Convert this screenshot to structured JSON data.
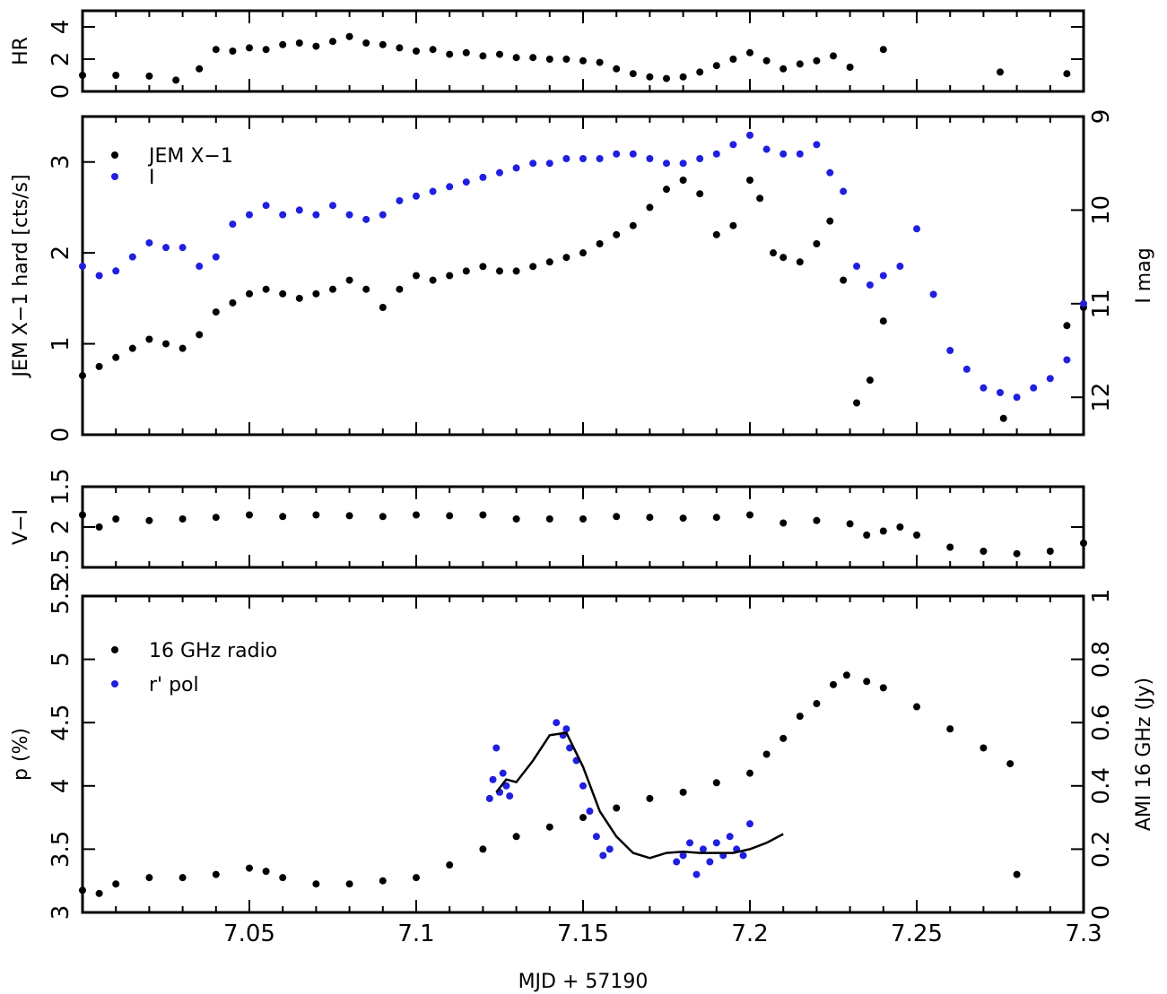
{
  "chart_data": [
    {
      "panel": "hr",
      "type": "scatter",
      "title": "",
      "xlabel": "",
      "ylabel": "HR",
      "xlim": [
        7.0,
        7.3
      ],
      "ylim": [
        0,
        5
      ],
      "yticks": [
        "0",
        "2",
        "4"
      ],
      "yticks_values": [
        0,
        2,
        4
      ],
      "xticks_values": [
        7.05,
        7.1,
        7.15,
        7.2,
        7.25,
        7.3
      ],
      "series": [
        {
          "color": "#000000",
          "x": [
            7.0,
            7.01,
            7.02,
            7.028,
            7.035,
            7.04,
            7.045,
            7.05,
            7.055,
            7.06,
            7.065,
            7.07,
            7.075,
            7.08,
            7.085,
            7.09,
            7.095,
            7.1,
            7.105,
            7.11,
            7.115,
            7.12,
            7.125,
            7.13,
            7.135,
            7.14,
            7.145,
            7.15,
            7.155,
            7.16,
            7.165,
            7.17,
            7.175,
            7.18,
            7.185,
            7.19,
            7.195,
            7.2,
            7.205,
            7.21,
            7.215,
            7.22,
            7.225,
            7.23,
            7.24,
            7.275,
            7.295
          ],
          "y": [
            1.0,
            1.0,
            0.95,
            0.7,
            1.4,
            2.6,
            2.5,
            2.7,
            2.6,
            2.9,
            3.0,
            2.8,
            3.1,
            3.4,
            3.0,
            2.9,
            2.7,
            2.5,
            2.6,
            2.3,
            2.4,
            2.2,
            2.3,
            2.1,
            2.1,
            2.0,
            2.0,
            1.9,
            1.8,
            1.4,
            1.1,
            0.9,
            0.8,
            0.9,
            1.2,
            1.6,
            2.0,
            2.4,
            1.9,
            1.4,
            1.7,
            1.9,
            2.2,
            1.5,
            2.6,
            1.2,
            1.1
          ]
        }
      ]
    },
    {
      "panel": "xray_optical",
      "type": "scatter",
      "title": "",
      "xlabel": "",
      "ylabel": "JEM X−1 hard [cts/s]",
      "y2label": "I mag",
      "xlim": [
        7.0,
        7.3
      ],
      "ylim": [
        0,
        3.5
      ],
      "y2lim": [
        9,
        12.4
      ],
      "yticks": [
        "0",
        "1",
        "2",
        "3"
      ],
      "yticks_values": [
        0,
        1,
        2,
        3
      ],
      "y2ticks": [
        "9",
        "10",
        "11",
        "12"
      ],
      "y2ticks_values": [
        9,
        10,
        11,
        12
      ],
      "xticks_values": [
        7.05,
        7.1,
        7.15,
        7.2,
        7.25,
        7.3
      ],
      "legend_position": "top-left",
      "series": [
        {
          "name": "JEM X−1",
          "color": "#000000",
          "axis": "left",
          "x": [
            7.0,
            7.005,
            7.01,
            7.015,
            7.02,
            7.025,
            7.03,
            7.035,
            7.04,
            7.045,
            7.05,
            7.055,
            7.06,
            7.065,
            7.07,
            7.075,
            7.08,
            7.085,
            7.09,
            7.095,
            7.1,
            7.105,
            7.11,
            7.115,
            7.12,
            7.125,
            7.13,
            7.135,
            7.14,
            7.145,
            7.15,
            7.155,
            7.16,
            7.165,
            7.17,
            7.175,
            7.18,
            7.185,
            7.19,
            7.195,
            7.2,
            7.203,
            7.207,
            7.21,
            7.215,
            7.22,
            7.224,
            7.228,
            7.232,
            7.236,
            7.24,
            7.276,
            7.295,
            7.3
          ],
          "y": [
            0.65,
            0.75,
            0.85,
            0.95,
            1.05,
            1.0,
            0.95,
            1.1,
            1.35,
            1.45,
            1.55,
            1.6,
            1.55,
            1.5,
            1.55,
            1.6,
            1.7,
            1.6,
            1.4,
            1.6,
            1.75,
            1.7,
            1.75,
            1.8,
            1.85,
            1.8,
            1.8,
            1.85,
            1.9,
            1.95,
            2.0,
            2.1,
            2.2,
            2.3,
            2.5,
            2.7,
            2.8,
            2.65,
            2.2,
            2.3,
            2.8,
            2.6,
            2.0,
            1.95,
            1.9,
            2.1,
            2.35,
            1.7,
            0.35,
            0.6,
            1.25,
            0.18,
            1.2,
            1.4
          ]
        },
        {
          "name": "I",
          "color": "#1f1fdf",
          "axis": "right",
          "x": [
            7.0,
            7.005,
            7.01,
            7.015,
            7.02,
            7.025,
            7.03,
            7.035,
            7.04,
            7.045,
            7.05,
            7.055,
            7.06,
            7.065,
            7.07,
            7.075,
            7.08,
            7.085,
            7.09,
            7.095,
            7.1,
            7.105,
            7.11,
            7.115,
            7.12,
            7.125,
            7.13,
            7.135,
            7.14,
            7.145,
            7.15,
            7.155,
            7.16,
            7.165,
            7.17,
            7.175,
            7.18,
            7.185,
            7.19,
            7.195,
            7.2,
            7.205,
            7.21,
            7.215,
            7.22,
            7.224,
            7.228,
            7.232,
            7.236,
            7.24,
            7.245,
            7.25,
            7.255,
            7.26,
            7.265,
            7.27,
            7.275,
            7.28,
            7.285,
            7.29,
            7.295,
            7.3
          ],
          "y": [
            10.6,
            10.7,
            10.65,
            10.5,
            10.35,
            10.4,
            10.4,
            10.6,
            10.5,
            10.15,
            10.05,
            9.95,
            10.05,
            10.0,
            10.05,
            9.95,
            10.05,
            10.1,
            10.05,
            9.9,
            9.85,
            9.8,
            9.75,
            9.7,
            9.65,
            9.6,
            9.55,
            9.5,
            9.5,
            9.45,
            9.45,
            9.45,
            9.4,
            9.4,
            9.45,
            9.5,
            9.5,
            9.45,
            9.4,
            9.3,
            9.2,
            9.35,
            9.4,
            9.4,
            9.3,
            9.6,
            9.8,
            10.6,
            10.8,
            10.7,
            10.6,
            10.2,
            10.9,
            11.5,
            11.7,
            11.9,
            11.95,
            12.0,
            11.9,
            11.8,
            11.6,
            11.0
          ]
        }
      ]
    },
    {
      "panel": "color",
      "type": "scatter",
      "title": "",
      "xlabel": "",
      "ylabel": "V−I",
      "xlim": [
        7.0,
        7.3
      ],
      "ylim": [
        2.5,
        1.5
      ],
      "yticks": [
        "1.5",
        "2",
        "2.5"
      ],
      "yticks_values": [
        1.5,
        2,
        2.5
      ],
      "y_inverted": true,
      "xticks_values": [
        7.05,
        7.1,
        7.15,
        7.2,
        7.25,
        7.3
      ],
      "series": [
        {
          "color": "#000000",
          "x": [
            7.0,
            7.005,
            7.01,
            7.02,
            7.03,
            7.04,
            7.05,
            7.06,
            7.07,
            7.08,
            7.09,
            7.1,
            7.11,
            7.12,
            7.13,
            7.14,
            7.15,
            7.16,
            7.17,
            7.18,
            7.19,
            7.2,
            7.21,
            7.22,
            7.23,
            7.235,
            7.24,
            7.245,
            7.25,
            7.26,
            7.27,
            7.28,
            7.29,
            7.3
          ],
          "y": [
            1.85,
            2.0,
            1.9,
            1.92,
            1.9,
            1.88,
            1.85,
            1.87,
            1.85,
            1.86,
            1.87,
            1.85,
            1.86,
            1.85,
            1.9,
            1.9,
            1.9,
            1.87,
            1.88,
            1.89,
            1.88,
            1.85,
            1.95,
            1.92,
            1.96,
            2.1,
            2.05,
            2.0,
            2.1,
            2.25,
            2.3,
            2.33,
            2.3,
            2.2
          ]
        }
      ]
    },
    {
      "panel": "radio_pol",
      "type": "scatter",
      "title": "",
      "xlabel": "MJD + 57190",
      "ylabel": "p (%)",
      "y2label": "AMI 16 GHz (Jy)",
      "xlim": [
        7.0,
        7.3
      ],
      "ylim": [
        3,
        5.5
      ],
      "y2lim": [
        0,
        1
      ],
      "yticks": [
        "3",
        "3.5",
        "4",
        "4.5",
        "5",
        "5.5"
      ],
      "yticks_values": [
        3,
        3.5,
        4,
        4.5,
        5,
        5.5
      ],
      "y2ticks": [
        "0",
        "0.2",
        "0.4",
        "0.6",
        "0.8",
        "1"
      ],
      "y2ticks_values": [
        0,
        0.2,
        0.4,
        0.6,
        0.8,
        1
      ],
      "xticks": [
        "7.05",
        "7.1",
        "7.15",
        "7.2",
        "7.25",
        "7.3"
      ],
      "xticks_values": [
        7.05,
        7.1,
        7.15,
        7.2,
        7.25,
        7.3
      ],
      "legend_position": "top-left",
      "series": [
        {
          "name": "16 GHz radio",
          "color": "#000000",
          "axis": "right",
          "x": [
            7.0,
            7.005,
            7.01,
            7.02,
            7.03,
            7.04,
            7.05,
            7.055,
            7.06,
            7.07,
            7.08,
            7.09,
            7.1,
            7.11,
            7.12,
            7.13,
            7.14,
            7.15,
            7.16,
            7.17,
            7.18,
            7.19,
            7.2,
            7.205,
            7.21,
            7.215,
            7.22,
            7.225,
            7.229,
            7.235,
            7.24,
            7.25,
            7.26,
            7.27,
            7.278,
            7.28
          ],
          "y": [
            0.07,
            0.06,
            0.09,
            0.11,
            0.11,
            0.12,
            0.14,
            0.13,
            0.11,
            0.09,
            0.09,
            0.1,
            0.11,
            0.15,
            0.2,
            0.24,
            0.27,
            0.3,
            0.33,
            0.36,
            0.38,
            0.41,
            0.44,
            0.5,
            0.55,
            0.62,
            0.66,
            0.72,
            0.75,
            0.73,
            0.71,
            0.65,
            0.58,
            0.52,
            0.47,
            0.12
          ]
        },
        {
          "name": "r' pol",
          "color": "#1f1fdf",
          "axis": "left",
          "x": [
            7.122,
            7.123,
            7.124,
            7.125,
            7.126,
            7.127,
            7.128,
            7.142,
            7.144,
            7.145,
            7.146,
            7.148,
            7.15,
            7.152,
            7.154,
            7.156,
            7.158,
            7.178,
            7.18,
            7.182,
            7.184,
            7.186,
            7.188,
            7.19,
            7.192,
            7.194,
            7.196,
            7.198,
            7.2
          ],
          "y": [
            3.9,
            4.05,
            4.3,
            3.95,
            4.1,
            4.0,
            3.92,
            4.5,
            4.4,
            4.45,
            4.3,
            4.2,
            4.0,
            3.8,
            3.6,
            3.45,
            3.5,
            3.4,
            3.45,
            3.55,
            3.3,
            3.5,
            3.4,
            3.55,
            3.45,
            3.6,
            3.5,
            3.45,
            3.7
          ]
        },
        {
          "name": "",
          "type": "line",
          "color": "#000000",
          "axis": "left",
          "x": [
            7.124,
            7.127,
            7.13,
            7.135,
            7.14,
            7.145,
            7.15,
            7.155,
            7.16,
            7.165,
            7.17,
            7.175,
            7.18,
            7.185,
            7.19,
            7.195,
            7.2,
            7.205,
            7.21
          ],
          "y": [
            3.95,
            4.05,
            4.03,
            4.2,
            4.4,
            4.42,
            4.15,
            3.8,
            3.6,
            3.47,
            3.43,
            3.47,
            3.48,
            3.47,
            3.47,
            3.47,
            3.5,
            3.55,
            3.62
          ]
        }
      ]
    }
  ]
}
